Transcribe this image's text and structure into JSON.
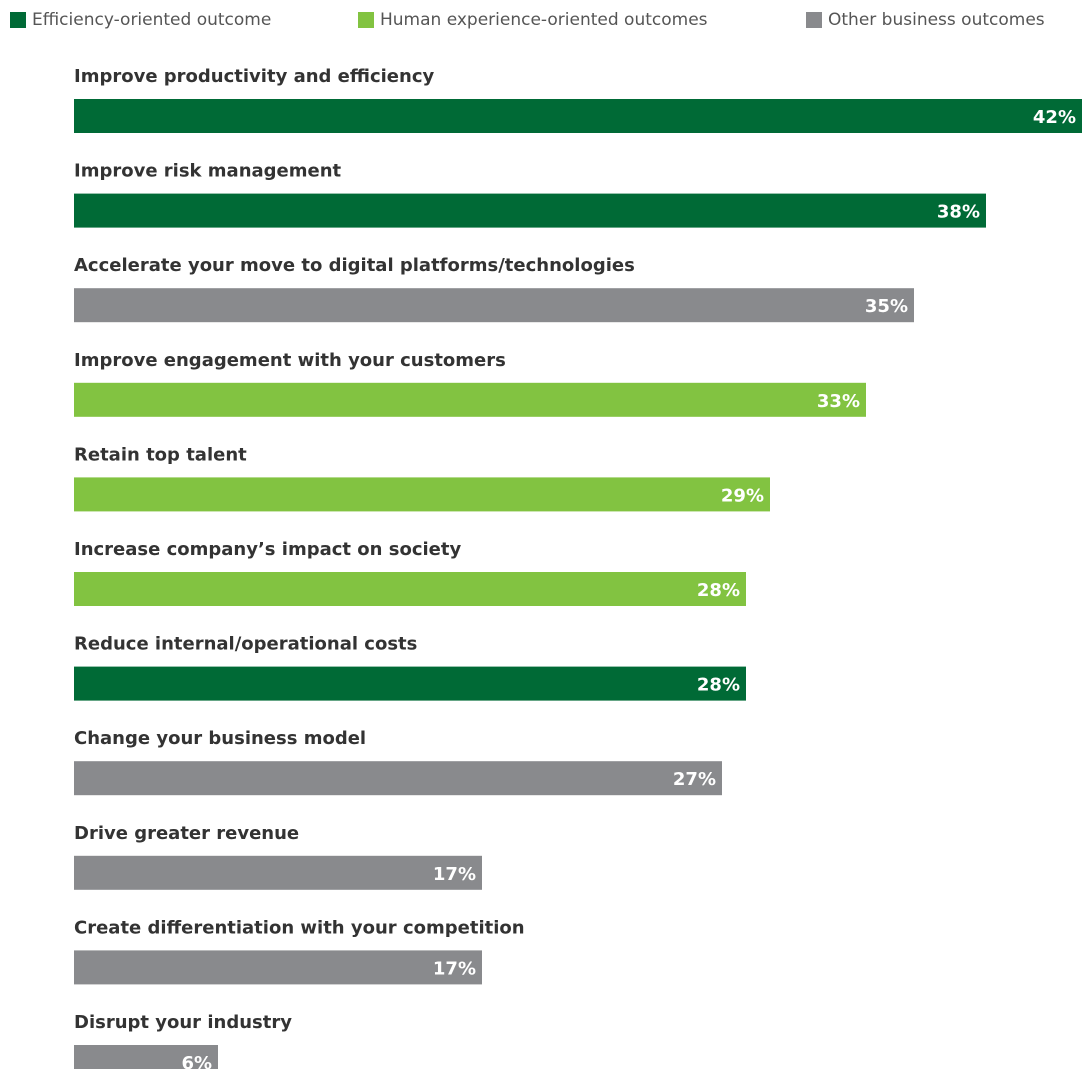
{
  "chart_data": {
    "type": "bar",
    "orientation": "horizontal",
    "legend": {
      "position": "top",
      "entries": [
        {
          "label": "Efficiency-oriented outcome",
          "color": "#006A36"
        },
        {
          "label": "Human experience-oriented outcomes",
          "color": "#82C341"
        },
        {
          "label": "Other business outcomes",
          "color": "#898A8D"
        }
      ]
    },
    "categories": [
      "Improve productivity and efficiency",
      "Improve risk management",
      "Accelerate your move to digital platforms/technologies",
      "Improve engagement with your customers",
      "Retain top talent",
      "Increase company’s impact on society",
      "Reduce internal/operational costs",
      "Change your business model",
      "Drive greater revenue",
      "Create differentiation with your competition",
      "Disrupt your industry"
    ],
    "values": [
      42,
      38,
      35,
      33,
      29,
      28,
      28,
      27,
      17,
      17,
      6
    ],
    "value_labels": [
      "42%",
      "38%",
      "35%",
      "33%",
      "29%",
      "28%",
      "28%",
      "27%",
      "17%",
      "17%",
      "6%"
    ],
    "groups": [
      0,
      0,
      2,
      1,
      1,
      1,
      0,
      2,
      2,
      2,
      2
    ],
    "unit": "%",
    "xlim": [
      0,
      42
    ],
    "grid": false
  }
}
